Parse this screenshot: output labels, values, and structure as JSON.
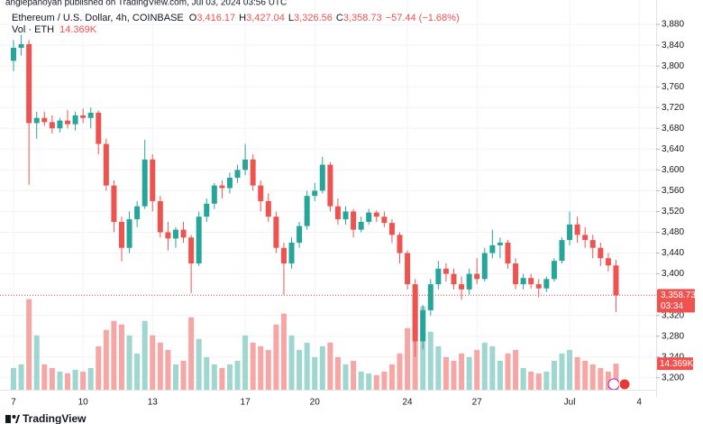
{
  "header": {
    "published": "anglepanoyan published on TradingView.com, Jul 03, 2024 03:56 UTC",
    "title": "Ethereum / U.S. Dollar, 4h, COINBASE",
    "ohlc": [
      {
        "key": "O",
        "value": "3,416.17"
      },
      {
        "key": "H",
        "value": "3,427.04"
      },
      {
        "key": "L",
        "value": "3,326.56"
      },
      {
        "key": "C",
        "value": "3,358.73"
      }
    ],
    "change": "−57.44 (−1.68%)",
    "vol_label": "Vol · ETH",
    "vol_value": "14.369K"
  },
  "chart_data": {
    "type": "candlestick",
    "categories": [
      "7",
      null,
      null,
      null,
      null,
      null,
      null,
      null,
      null,
      "10",
      null,
      null,
      null,
      null,
      null,
      null,
      null,
      null,
      "13",
      null,
      null,
      null,
      null,
      null,
      null,
      null,
      null,
      null,
      null,
      null,
      "17",
      null,
      null,
      null,
      null,
      null,
      null,
      null,
      null,
      "20",
      null,
      null,
      null,
      null,
      null,
      null,
      null,
      null,
      null,
      null,
      null,
      "24",
      null,
      null,
      null,
      null,
      null,
      null,
      null,
      null,
      "27",
      null,
      null,
      null,
      null,
      null,
      null,
      null,
      null,
      null,
      null,
      null,
      "Jul",
      null,
      null,
      null,
      null,
      null,
      null,
      null,
      null,
      "4",
      null
    ],
    "open": [
      3810,
      3835,
      3842,
      3690,
      3700,
      3692,
      3680,
      3695,
      3688,
      3705,
      3700,
      3710,
      3650,
      3570,
      3500,
      3450,
      3505,
      3530,
      3620,
      3540,
      3480,
      3468,
      3485,
      3470,
      3420,
      3510,
      3535,
      3570,
      3565,
      3585,
      3600,
      3620,
      3570,
      3540,
      3510,
      3450,
      3420,
      3460,
      3492,
      3550,
      3560,
      3610,
      3530,
      3505,
      3520,
      3485,
      3500,
      3518,
      3510,
      3498,
      3475,
      3440,
      3380,
      3270,
      3330,
      3380,
      3410,
      3400,
      3380,
      3370,
      3400,
      3390,
      3440,
      3455,
      3460,
      3420,
      3380,
      3392,
      3380,
      3372,
      3390,
      3425,
      3465,
      3495,
      3475,
      3465,
      3450,
      3430,
      3416.17,
      null,
      null,
      null,
      null
    ],
    "high": [
      3850,
      3860,
      3850,
      3712,
      3712,
      3705,
      3700,
      3715,
      3712,
      3718,
      3720,
      3714,
      3660,
      3580,
      3510,
      3520,
      3540,
      3658,
      3630,
      3550,
      3500,
      3490,
      3500,
      3475,
      3520,
      3545,
      3575,
      3580,
      3595,
      3610,
      3650,
      3630,
      3580,
      3555,
      3520,
      3460,
      3470,
      3500,
      3560,
      3575,
      3625,
      3615,
      3545,
      3530,
      3525,
      3510,
      3525,
      3522,
      3520,
      3505,
      3480,
      3445,
      3390,
      3340,
      3390,
      3425,
      3420,
      3410,
      3395,
      3410,
      3430,
      3450,
      3485,
      3470,
      3465,
      3430,
      3400,
      3400,
      3390,
      3395,
      3430,
      3470,
      3520,
      3510,
      3490,
      3475,
      3460,
      3440,
      3427.04,
      null,
      null,
      null,
      null
    ],
    "low": [
      3790,
      3820,
      3571,
      3660,
      3685,
      3670,
      3672,
      3680,
      3676,
      3690,
      3680,
      3630,
      3560,
      3480,
      3424,
      3440,
      3490,
      3525,
      3520,
      3470,
      3445,
      3450,
      3460,
      3363,
      3415,
      3500,
      3525,
      3545,
      3555,
      3575,
      3590,
      3560,
      3520,
      3500,
      3440,
      3360,
      3410,
      3450,
      3485,
      3540,
      3555,
      3520,
      3495,
      3495,
      3470,
      3480,
      3495,
      3500,
      3490,
      3460,
      3420,
      3370,
      3240,
      3255,
      3320,
      3370,
      3385,
      3370,
      3350,
      3360,
      3380,
      3385,
      3430,
      3430,
      3410,
      3370,
      3370,
      3372,
      3355,
      3365,
      3385,
      3420,
      3455,
      3460,
      3450,
      3430,
      3415,
      3405,
      3326.56,
      null,
      null,
      null,
      null
    ],
    "close": [
      3835,
      3842,
      3690,
      3700,
      3692,
      3680,
      3695,
      3688,
      3705,
      3700,
      3710,
      3650,
      3570,
      3500,
      3450,
      3505,
      3530,
      3620,
      3540,
      3480,
      3468,
      3485,
      3470,
      3420,
      3510,
      3535,
      3570,
      3565,
      3585,
      3600,
      3620,
      3570,
      3540,
      3510,
      3450,
      3420,
      3460,
      3492,
      3550,
      3560,
      3610,
      3530,
      3505,
      3520,
      3485,
      3500,
      3518,
      3510,
      3498,
      3475,
      3440,
      3380,
      3270,
      3330,
      3380,
      3410,
      3400,
      3380,
      3370,
      3400,
      3390,
      3440,
      3455,
      3460,
      3420,
      3380,
      3392,
      3380,
      3372,
      3390,
      3425,
      3465,
      3495,
      3475,
      3465,
      3450,
      3430,
      3416.17,
      3358.73,
      null,
      null,
      null,
      null
    ],
    "volume": [
      12,
      14,
      50,
      30,
      14,
      12,
      10,
      9,
      11,
      10,
      12,
      24,
      33,
      38,
      36,
      30,
      20,
      38,
      30,
      26,
      22,
      14,
      16,
      40,
      28,
      18,
      14,
      12,
      14,
      16,
      30,
      26,
      24,
      22,
      36,
      42,
      30,
      22,
      26,
      18,
      24,
      26,
      18,
      14,
      16,
      10,
      9,
      8,
      10,
      14,
      20,
      34,
      52,
      46,
      32,
      24,
      18,
      16,
      20,
      18,
      22,
      26,
      24,
      16,
      20,
      22,
      12,
      10,
      9,
      10,
      16,
      20,
      22,
      18,
      16,
      14,
      12,
      10,
      14.369,
      null,
      null,
      null,
      null
    ],
    "up_color": "#26a69a",
    "down_color": "#ef5350",
    "volume_up_color": "#9fd6d0",
    "volume_down_color": "#f6a6a4",
    "ylim": [
      3177,
      3927
    ],
    "yticks": [
      {
        "value": 3200,
        "label": "3,200"
      },
      {
        "value": 3240,
        "label": "3,240"
      },
      {
        "value": 3280,
        "label": "3,280"
      },
      {
        "value": 3320,
        "label": "3,320"
      },
      {
        "value": 3360,
        "label": "3,360"
      },
      {
        "value": 3400,
        "label": "3,400"
      },
      {
        "value": 3440,
        "label": "3,440"
      },
      {
        "value": 3480,
        "label": "3,480"
      },
      {
        "value": 3520,
        "label": "3,520"
      },
      {
        "value": 3560,
        "label": "3,560"
      },
      {
        "value": 3600,
        "label": "3,600"
      },
      {
        "value": 3640,
        "label": "3,640"
      },
      {
        "value": 3680,
        "label": "3,680"
      },
      {
        "value": 3720,
        "label": "3,720"
      },
      {
        "value": 3760,
        "label": "3,760"
      },
      {
        "value": 3800,
        "label": "3,800"
      },
      {
        "value": 3840,
        "label": "3,840"
      },
      {
        "value": 3880,
        "label": "3,880"
      }
    ],
    "volume_ylim": [
      0,
      215
    ],
    "last_price_label": "3,358.73",
    "countdown": "03:34",
    "volume_tag": "14.369K",
    "grid": true
  },
  "footer": {
    "brand": "TradingView"
  }
}
